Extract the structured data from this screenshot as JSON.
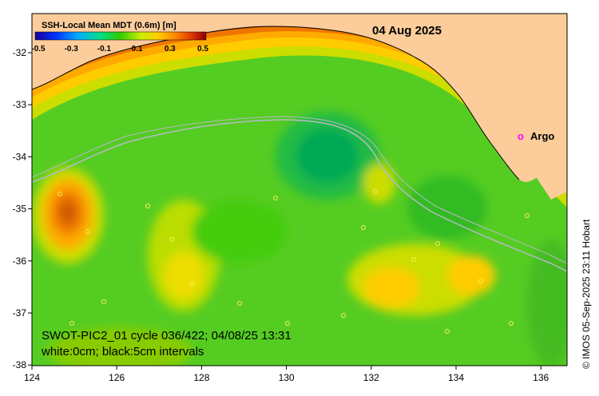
{
  "map": {
    "date": "04 Aug 2025",
    "colorbar": {
      "title": "SSH-Local Mean MDT (0.6m) [m]",
      "ticks": [
        "-0.5",
        "-0.3",
        "-0.1",
        "0.1",
        "0.3",
        "0.5"
      ]
    },
    "lon_ticks": [
      "124",
      "126",
      "128",
      "130",
      "132",
      "134",
      "136"
    ],
    "lat_ticks": [
      "-32",
      "-33",
      "-34",
      "-35",
      "-36",
      "-37",
      "-38"
    ],
    "argo": {
      "marker": "o",
      "label": "Argo",
      "color": "#ff00ff"
    },
    "info_line1": "SWOT-PIC2_01 cycle 036/422; 04/08/25 13:31",
    "info_line2": "white:0cm; black:5cm intervals",
    "credit": "© IMOS 05-Sep-2025 23:11 Hobart"
  },
  "colors": {
    "land": "#fccc9a",
    "track": "#b8b8c8"
  }
}
